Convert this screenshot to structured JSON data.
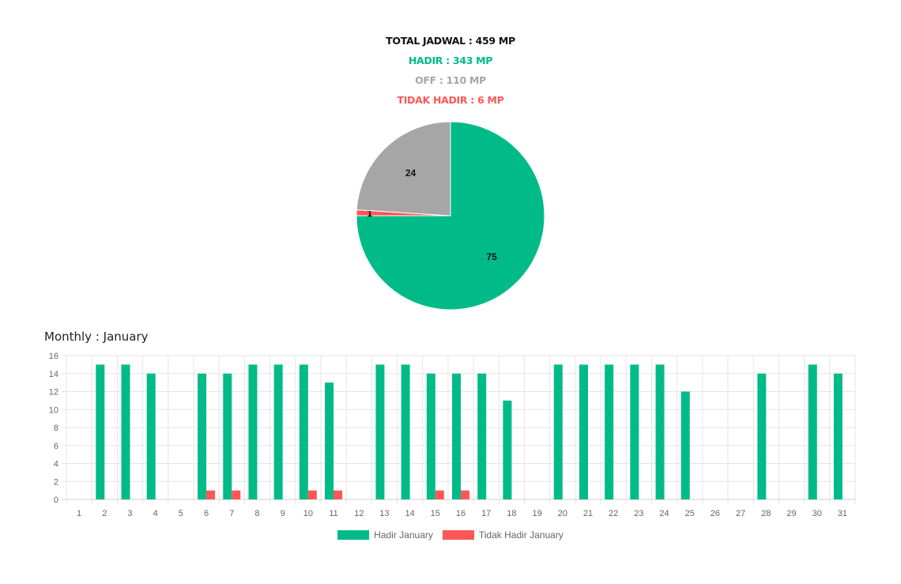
{
  "summary": {
    "total": "TOTAL JADWAL : 459 MP",
    "hadir": "HADIR : 343 MP",
    "off": "OFF : 110 MP",
    "tidak_hadir": "TIDAK HADIR : 6 MP"
  },
  "colors": {
    "hadir": "#00bb88",
    "off": "#a6a6a6",
    "tidak_hadir": "#ff5757",
    "grid": "#e5e5e5",
    "axis_text": "#666666"
  },
  "monthly_title": "Monthly : January",
  "chart_data": [
    {
      "type": "pie",
      "slices": [
        {
          "key": "hadir",
          "value": 75,
          "label": "75"
        },
        {
          "key": "tidak_hadir",
          "value": 1,
          "label": "1"
        },
        {
          "key": "off",
          "value": 24,
          "label": "24"
        }
      ]
    },
    {
      "type": "bar",
      "categories": [
        "1",
        "2",
        "3",
        "4",
        "5",
        "6",
        "7",
        "8",
        "9",
        "10",
        "11",
        "12",
        "13",
        "14",
        "15",
        "16",
        "17",
        "18",
        "19",
        "20",
        "21",
        "22",
        "23",
        "24",
        "25",
        "26",
        "27",
        "28",
        "29",
        "30",
        "31"
      ],
      "series": [
        {
          "name": "Hadir January",
          "color_key": "hadir",
          "values": [
            0,
            15,
            15,
            14,
            0,
            14,
            14,
            15,
            15,
            15,
            13,
            0,
            15,
            15,
            14,
            14,
            14,
            11,
            0,
            15,
            15,
            15,
            15,
            15,
            12,
            0,
            0,
            14,
            0,
            15,
            14
          ]
        },
        {
          "name": "Tidak Hadir January",
          "color_key": "tidak_hadir",
          "values": [
            0,
            0,
            0,
            0,
            0,
            1,
            1,
            0,
            0,
            1,
            1,
            0,
            0,
            0,
            1,
            1,
            0,
            0,
            0,
            0,
            0,
            0,
            0,
            0,
            0,
            0,
            0,
            0,
            0,
            0,
            0
          ]
        }
      ],
      "ylim": [
        0,
        16
      ],
      "yticks": [
        0,
        2,
        4,
        6,
        8,
        10,
        12,
        14,
        16
      ],
      "grid": true,
      "legend_position": "bottom"
    }
  ]
}
